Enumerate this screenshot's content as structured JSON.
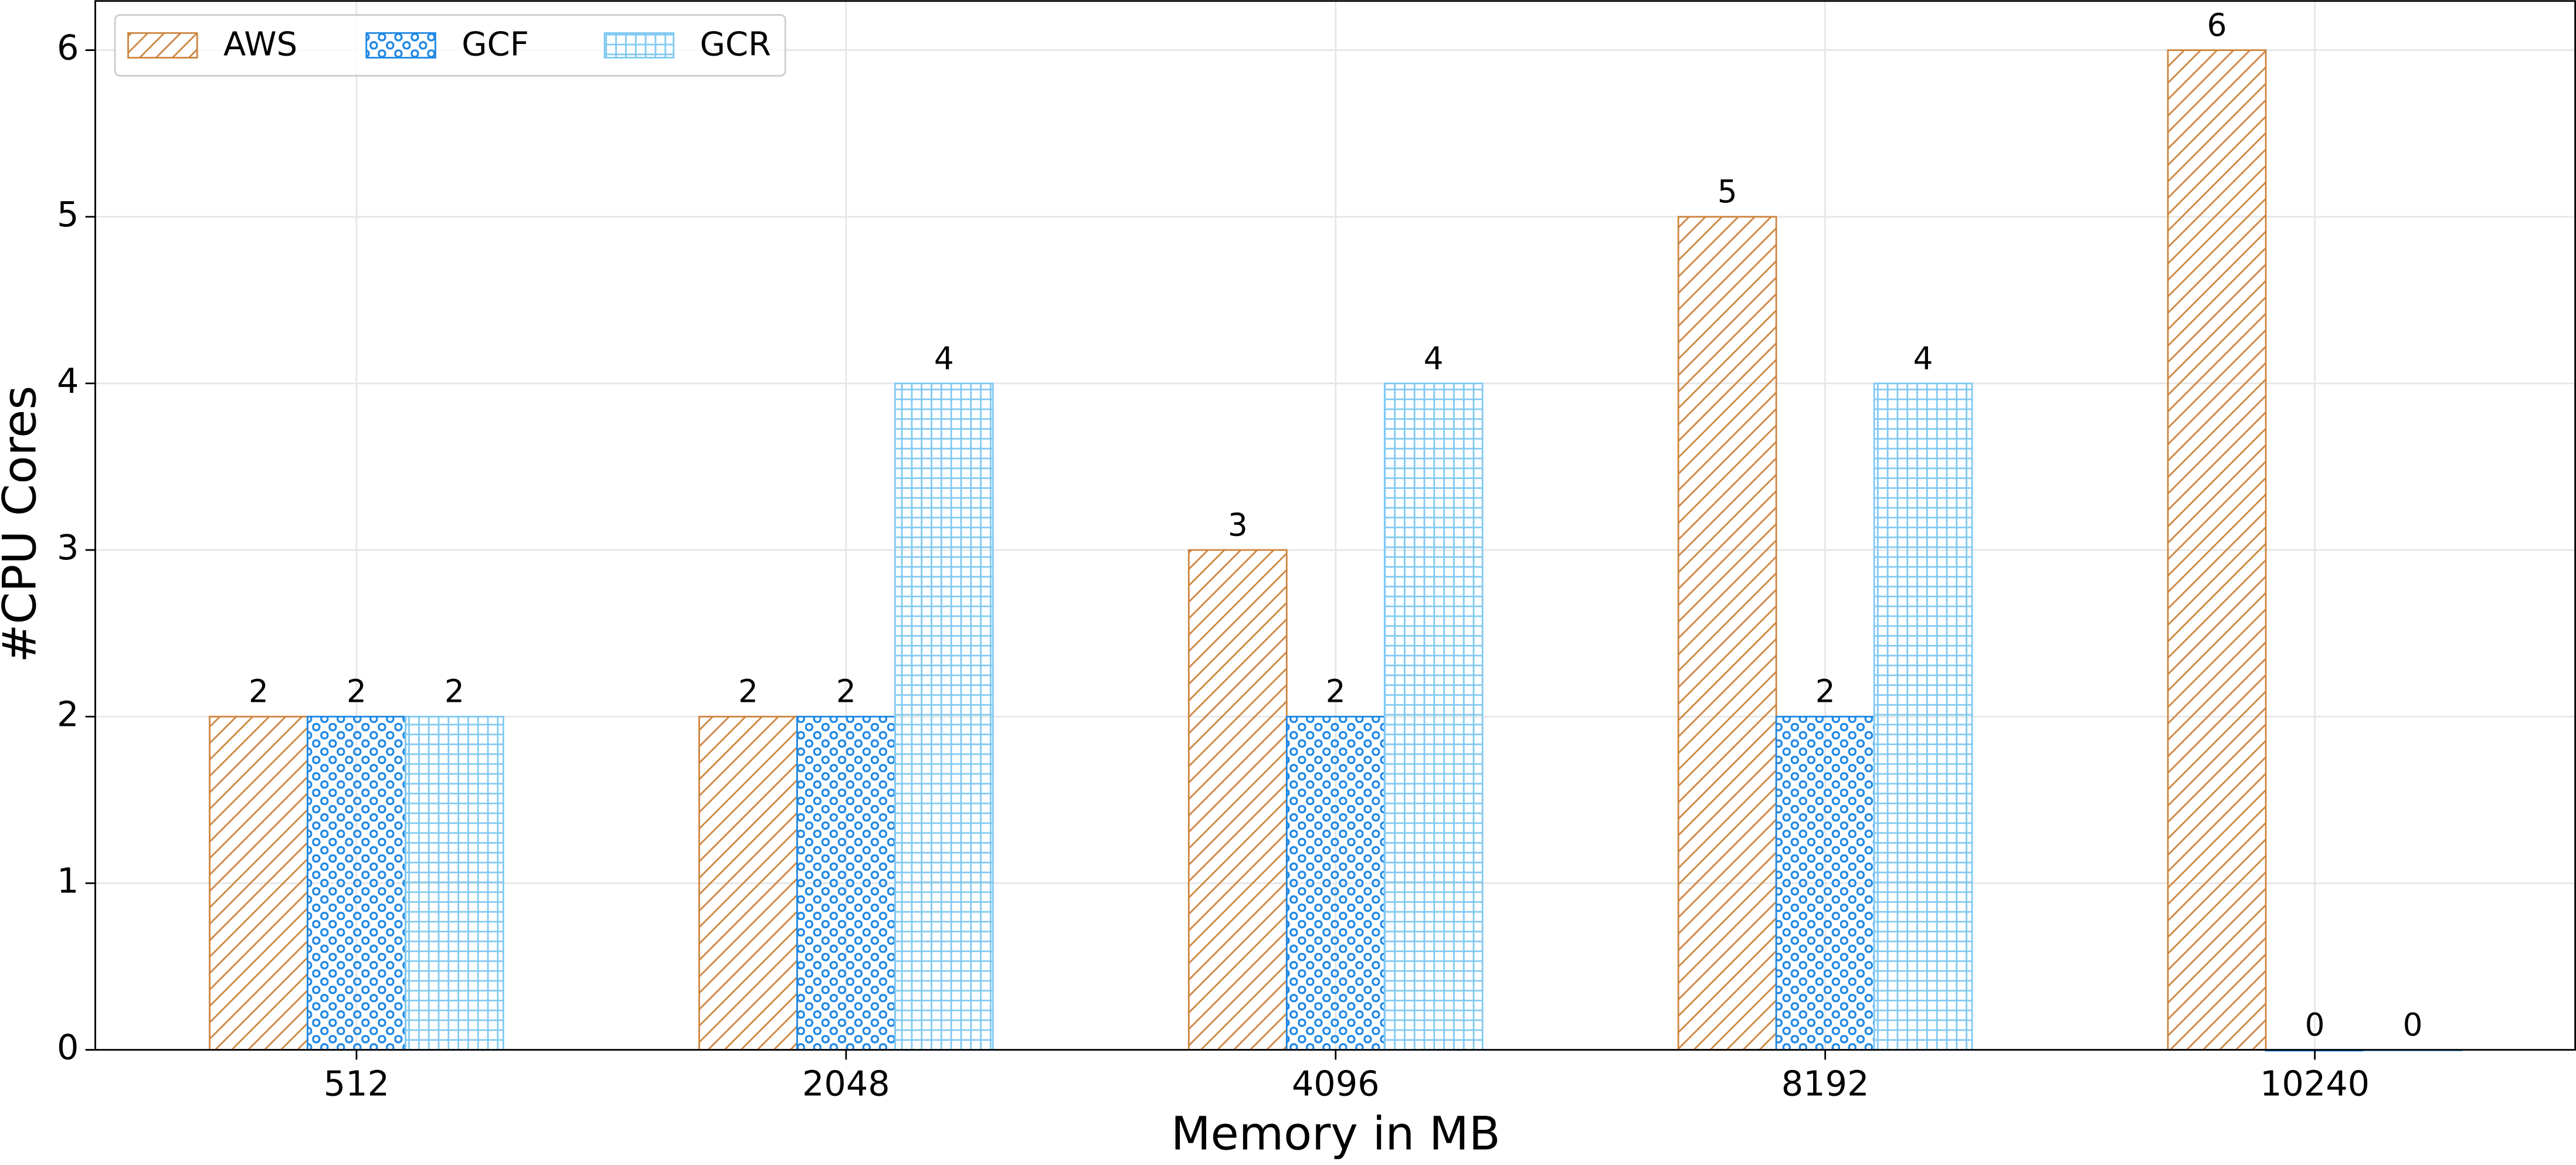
{
  "chart_data": {
    "type": "bar",
    "x_label": "Memory in MB",
    "y_label": "#CPU Cores",
    "categories": [
      "512",
      "2048",
      "4096",
      "8192",
      "10240"
    ],
    "series": [
      {
        "name": "AWS",
        "color": "#cd853f",
        "hatch": "/",
        "values": [
          2,
          2,
          3,
          5,
          6
        ]
      },
      {
        "name": "GCF",
        "color": "#1e88e5",
        "hatch": "o",
        "values": [
          2,
          2,
          2,
          2,
          0
        ]
      },
      {
        "name": "GCR",
        "color": "#81c9f2",
        "hatch": "+",
        "values": [
          2,
          4,
          4,
          4,
          0
        ]
      }
    ],
    "ylim": [
      0,
      6.3
    ],
    "yticks": [
      0,
      1,
      2,
      3,
      4,
      5,
      6
    ],
    "grid": true,
    "legend": "upper left"
  }
}
